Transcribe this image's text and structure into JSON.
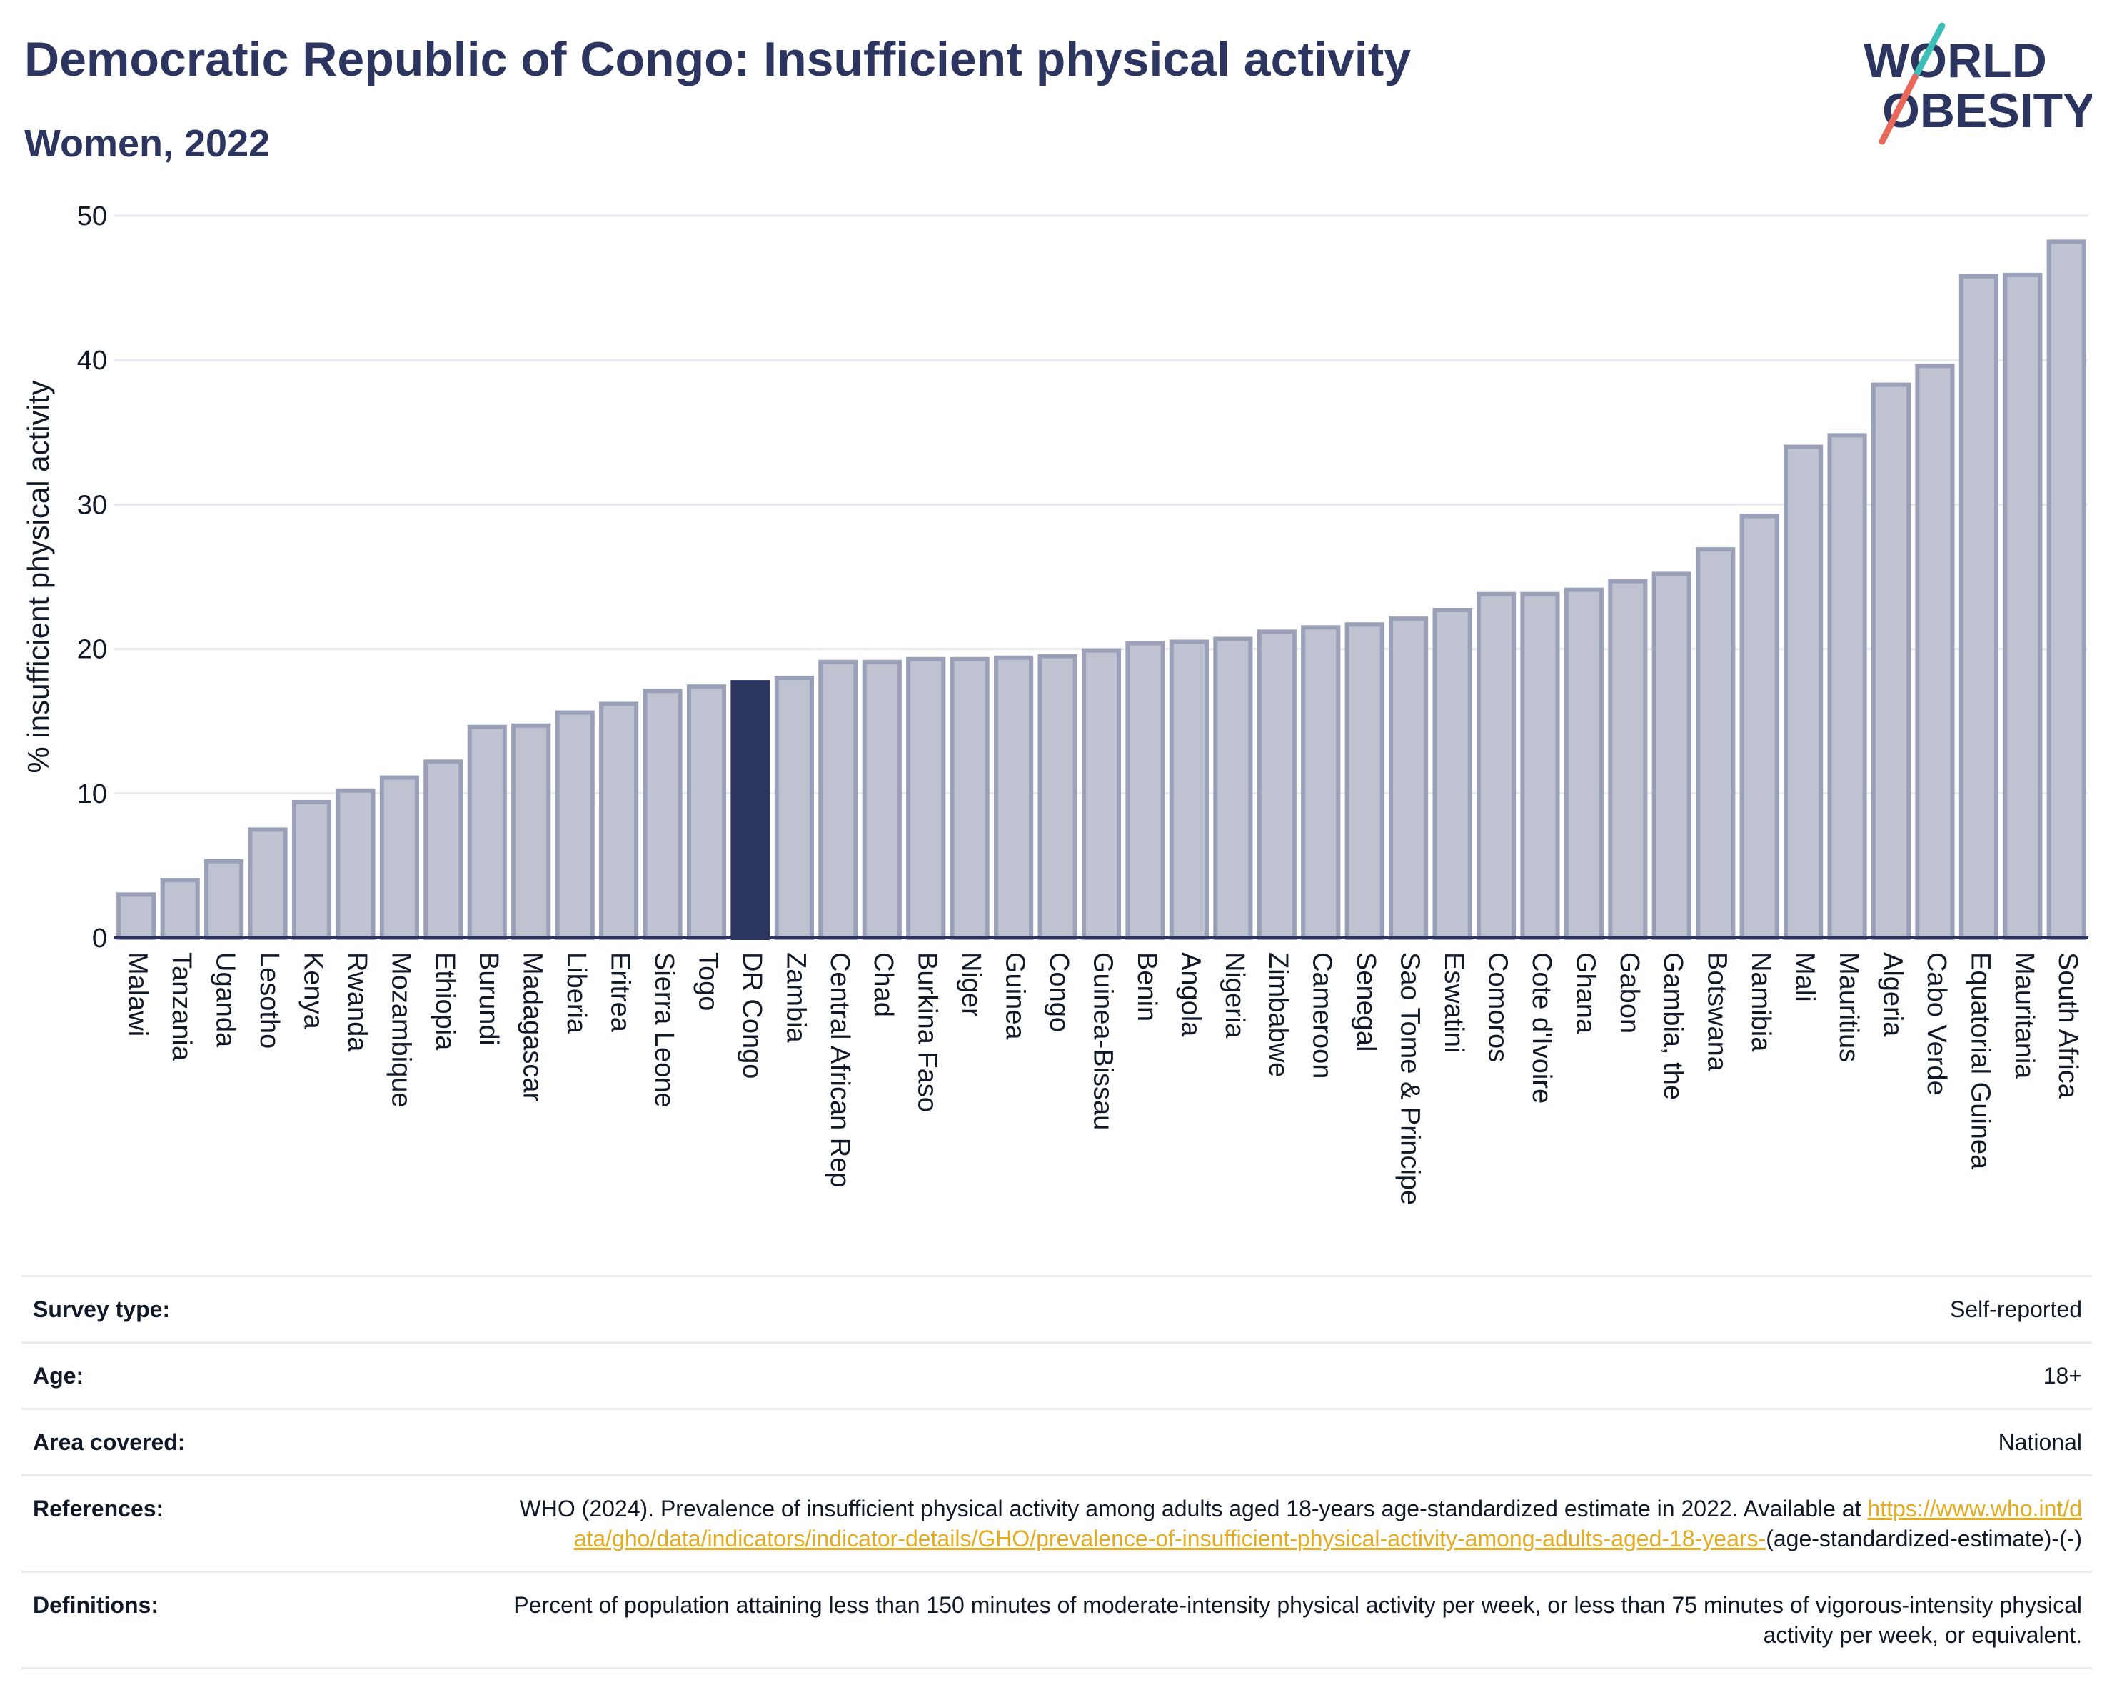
{
  "title": "Democratic Republic of Congo: Insufficient physical activity",
  "subtitle": "Women, 2022",
  "logo": {
    "line1": "WORLD",
    "line2": "OBESITY"
  },
  "colors": {
    "title": "#2b355f",
    "bar": "#bec2d1",
    "bar_border": "#9aa0b8",
    "highlight": "#2b355f",
    "gridline": "#e7e9ee",
    "axis": "#2b355f",
    "link": "#e5ab1f",
    "logo_teal": "#3bbfb8",
    "logo_coral": "#e8685a"
  },
  "chart_data": {
    "type": "bar",
    "ylabel": "% insufficient physical activity",
    "xlabel": "",
    "ylim": [
      0,
      50
    ],
    "yticks": [
      0,
      10,
      20,
      30,
      40,
      50
    ],
    "grid": true,
    "highlight": "DR Congo",
    "categories": [
      "Malawi",
      "Tanzania",
      "Uganda",
      "Lesotho",
      "Kenya",
      "Rwanda",
      "Mozambique",
      "Ethiopia",
      "Burundi",
      "Madagascar",
      "Liberia",
      "Eritrea",
      "Sierra Leone",
      "Togo",
      "DR Congo",
      "Zambia",
      "Central African Rep",
      "Chad",
      "Burkina Faso",
      "Niger",
      "Guinea",
      "Congo",
      "Guinea-Bissau",
      "Benin",
      "Angola",
      "Nigeria",
      "Zimbabwe",
      "Cameroon",
      "Senegal",
      "Sao Tome & Principe",
      "Eswatini",
      "Comoros",
      "Cote d'Ivoire",
      "Ghana",
      "Gabon",
      "Gambia, the",
      "Botswana",
      "Namibia",
      "Mali",
      "Mauritius",
      "Algeria",
      "Cabo Verde",
      "Equatorial Guinea",
      "Mauritania",
      "South Africa"
    ],
    "values": [
      3.0,
      4.0,
      5.3,
      7.5,
      9.4,
      10.2,
      11.1,
      12.2,
      14.6,
      14.7,
      15.6,
      16.2,
      17.1,
      17.4,
      17.7,
      18.0,
      19.1,
      19.1,
      19.3,
      19.3,
      19.4,
      19.5,
      19.9,
      20.4,
      20.5,
      20.7,
      21.2,
      21.5,
      21.7,
      22.1,
      22.7,
      23.8,
      23.8,
      24.1,
      24.7,
      25.2,
      26.9,
      29.2,
      34.0,
      34.8,
      38.3,
      39.6,
      45.8,
      45.9,
      48.2
    ]
  },
  "info": [
    {
      "label": "Survey type:",
      "value": "Self-reported"
    },
    {
      "label": "Age:",
      "value": "18+"
    },
    {
      "label": "Area covered:",
      "value": "National"
    }
  ],
  "references": {
    "label": "References:",
    "text": "WHO (2024). Prevalence of insufficient physical activity among adults aged 18-years age-standardized estimate in 2022. Available at",
    "link": "https://www.who.int/data/gho/data/indicators/indicator-details/GHO/prevalence-of-insufficient-physical-activity-among-adults-aged-18-years-",
    "suffix": "(age-standardized-estimate)-(-)"
  },
  "definitions": {
    "label": "Definitions:",
    "value": "Percent of population attaining less than 150 minutes of moderate-intensity physical activity per week, or less than 75 minutes of vigorous-intensity physical activity per week, or equivalent."
  }
}
